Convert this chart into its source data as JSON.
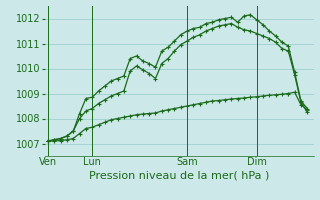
{
  "background_color": "#cce8e8",
  "grid_color": "#9ecece",
  "line_color": "#1a6b1a",
  "xlabel": "Pression niveau de la mer( hPa )",
  "xlabel_fontsize": 8,
  "ylim": [
    1006.5,
    1012.5
  ],
  "yticks": [
    1007,
    1008,
    1009,
    1010,
    1011,
    1012
  ],
  "ytick_fontsize": 7,
  "day_labels": [
    "Ven",
    "Lun",
    "Sam",
    "Dim"
  ],
  "day_positions": [
    0,
    7,
    22,
    33
  ],
  "xlim": [
    -0.5,
    42
  ],
  "series1": [
    1007.1,
    1007.15,
    1007.2,
    1007.3,
    1007.5,
    1008.2,
    1008.8,
    1008.85,
    1009.1,
    1009.3,
    1009.5,
    1009.6,
    1009.7,
    1010.4,
    1010.5,
    1010.3,
    1010.2,
    1010.05,
    1010.7,
    1010.85,
    1011.1,
    1011.35,
    1011.5,
    1011.6,
    1011.65,
    1011.8,
    1011.85,
    1011.95,
    1012.0,
    1012.05,
    1011.85,
    1012.1,
    1012.15,
    1011.95,
    1011.75,
    1011.5,
    1011.3,
    1011.05,
    1010.9,
    1009.85,
    1008.7,
    1008.4
  ],
  "series2": [
    1007.1,
    1007.15,
    1007.2,
    1007.3,
    1007.5,
    1008.0,
    1008.3,
    1008.4,
    1008.6,
    1008.75,
    1008.9,
    1009.0,
    1009.1,
    1009.9,
    1010.1,
    1009.95,
    1009.8,
    1009.6,
    1010.2,
    1010.4,
    1010.7,
    1010.95,
    1011.1,
    1011.25,
    1011.35,
    1011.5,
    1011.6,
    1011.7,
    1011.75,
    1011.8,
    1011.65,
    1011.55,
    1011.5,
    1011.4,
    1011.3,
    1011.2,
    1011.05,
    1010.8,
    1010.7,
    1009.75,
    1008.65,
    1008.25
  ],
  "series3": [
    1007.1,
    1007.1,
    1007.12,
    1007.15,
    1007.2,
    1007.4,
    1007.6,
    1007.65,
    1007.75,
    1007.85,
    1007.95,
    1008.0,
    1008.05,
    1008.1,
    1008.15,
    1008.18,
    1008.2,
    1008.22,
    1008.3,
    1008.35,
    1008.4,
    1008.45,
    1008.5,
    1008.55,
    1008.6,
    1008.65,
    1008.7,
    1008.72,
    1008.75,
    1008.78,
    1008.8,
    1008.82,
    1008.85,
    1008.87,
    1008.9,
    1008.93,
    1008.95,
    1008.97,
    1009.0,
    1009.05,
    1008.55,
    1008.35
  ]
}
